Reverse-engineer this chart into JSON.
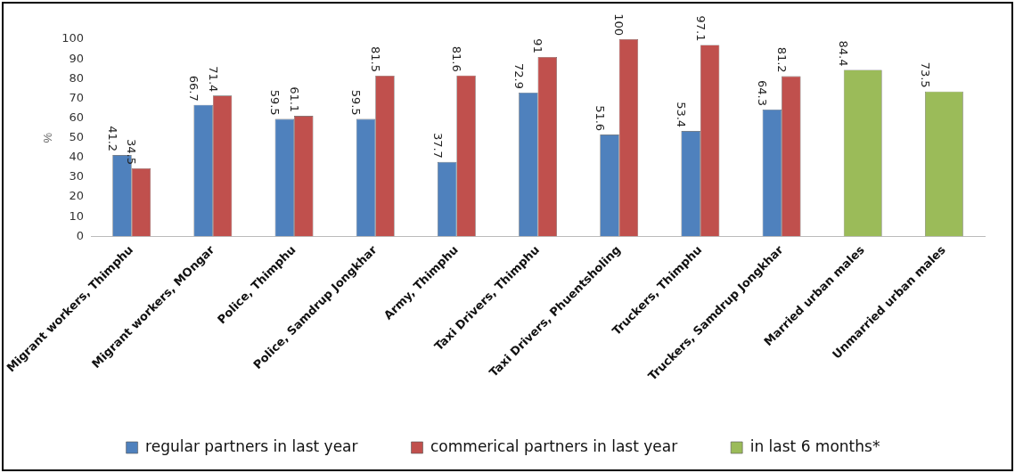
{
  "chart_data": {
    "type": "bar",
    "ylabel": "%",
    "categories": [
      "Migrant workers, Thimphu",
      "Migrant workers, MOngar",
      "Police, Thimphu",
      "Police, Samdrup Jongkhar",
      "Army, Thimphu",
      "Taxi Drivers, Thimphu",
      "Taxi Drivers, Phuentsholing",
      "Truckers, Thimphu",
      "Truckers, Samdrup Jongkhar",
      "Married urban males",
      "Unmarried urban males"
    ],
    "series": [
      {
        "name": "regular partners in last year",
        "color": "#4f81bd",
        "values": [
          41.2,
          66.7,
          59.5,
          59.5,
          37.7,
          72.9,
          51.6,
          53.4,
          64.3,
          null,
          null
        ]
      },
      {
        "name": "commerical partners in last year",
        "color": "#c0504d",
        "values": [
          34.5,
          71.4,
          61.1,
          81.5,
          81.6,
          91,
          100,
          97.1,
          81.2,
          null,
          null
        ]
      },
      {
        "name": "in last 6 months*",
        "color": "#9bbb59",
        "values": [
          null,
          null,
          null,
          null,
          null,
          null,
          null,
          null,
          null,
          84.4,
          73.5
        ]
      }
    ],
    "ylim": [
      0,
      100
    ],
    "yticks": [
      0,
      10,
      20,
      30,
      40,
      50,
      60,
      70,
      80,
      90,
      100
    ],
    "grid": false,
    "legend": "bottom",
    "data_labels": true
  }
}
